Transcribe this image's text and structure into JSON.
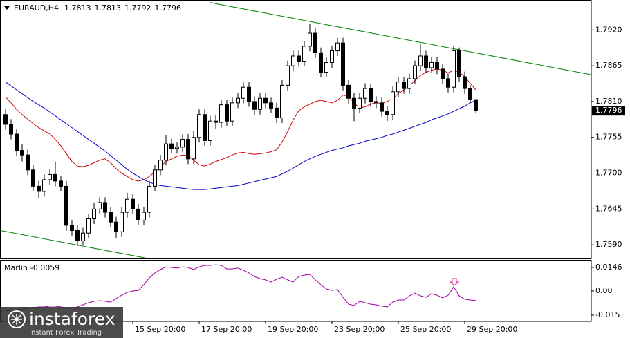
{
  "chart_data": [
    {
      "type": "candlestick",
      "title": "EURAUD,H4",
      "categories": [
        null,
        null,
        null,
        null,
        null,
        null,
        null,
        null,
        null,
        null,
        null,
        null,
        null,
        null,
        null,
        null,
        null,
        null,
        null,
        null,
        null,
        null,
        null,
        "15 Sep 20:00",
        null,
        null,
        null,
        null,
        null,
        null,
        null,
        null,
        null,
        null,
        null,
        "17 Sep 20:00",
        null,
        null,
        null,
        null,
        null,
        null,
        null,
        null,
        null,
        null,
        null,
        "19 Sep 20:00",
        null,
        null,
        null,
        null,
        null,
        null,
        null,
        null,
        null,
        null,
        null,
        "23 Sep 20:00",
        null,
        null,
        null,
        null,
        null,
        null,
        null,
        null,
        null,
        null,
        null,
        "25 Sep 20:00",
        null,
        null,
        null,
        null,
        null,
        null,
        null,
        null,
        null,
        null,
        null,
        "29 Sep 20:00",
        null,
        null
      ],
      "open": [
        1.779,
        1.7775,
        1.776,
        1.7735,
        1.7728,
        1.7705,
        1.768,
        1.7672,
        1.769,
        1.7698,
        1.7688,
        1.768,
        1.762,
        1.7612,
        1.7596,
        1.7608,
        1.763,
        1.7645,
        1.7655,
        1.764,
        1.7625,
        1.761,
        1.764,
        1.766,
        1.7645,
        1.7628,
        1.764,
        1.768,
        1.7705,
        1.772,
        1.7745,
        1.7738,
        1.774,
        1.7752,
        1.7722,
        1.7755,
        1.779,
        1.775,
        1.778,
        1.7778,
        1.7805,
        1.778,
        1.7808,
        1.7815,
        1.7832,
        1.781,
        1.7798,
        1.7815,
        1.7808,
        1.78,
        1.7785,
        1.7835,
        1.7865,
        1.788,
        1.7872,
        1.7895,
        1.7915,
        1.7885,
        1.7855,
        1.787,
        1.7888,
        1.79,
        1.7835,
        1.7815,
        1.78,
        1.7815,
        1.783,
        1.781,
        1.7808,
        1.7795,
        1.779,
        1.7825,
        1.784,
        1.783,
        1.7845,
        1.7865,
        1.788,
        1.7862,
        1.787,
        1.786,
        1.7845,
        1.7832,
        1.7888,
        1.7848,
        1.783,
        1.7813
      ],
      "high": [
        1.7798,
        1.7783,
        1.7768,
        1.7745,
        1.7736,
        1.7712,
        1.7688,
        1.7698,
        1.7706,
        1.7718,
        1.7696,
        1.7688,
        1.7628,
        1.762,
        1.7616,
        1.7638,
        1.7655,
        1.7663,
        1.7663,
        1.7648,
        1.7633,
        1.7648,
        1.767,
        1.7668,
        1.7653,
        1.7648,
        1.7688,
        1.7713,
        1.7728,
        1.7758,
        1.7753,
        1.7748,
        1.776,
        1.776,
        1.7765,
        1.7798,
        1.7798,
        1.7788,
        1.779,
        1.7813,
        1.7813,
        1.7816,
        1.7823,
        1.784,
        1.784,
        1.7818,
        1.7823,
        1.7823,
        1.7816,
        1.7808,
        1.7843,
        1.7873,
        1.7888,
        1.7888,
        1.7903,
        1.793,
        1.7923,
        1.7893,
        1.7878,
        1.7896,
        1.7908,
        1.7908,
        1.7843,
        1.7823,
        1.7823,
        1.7838,
        1.7838,
        1.7818,
        1.7816,
        1.7803,
        1.7833,
        1.7848,
        1.7848,
        1.7853,
        1.7873,
        1.7898,
        1.7888,
        1.7878,
        1.7878,
        1.7868,
        1.7853,
        1.7896,
        1.7893,
        1.7856,
        1.7835,
        1.7813
      ],
      "low": [
        1.7767,
        1.7752,
        1.7727,
        1.7718,
        1.7697,
        1.7672,
        1.7662,
        1.7664,
        1.7682,
        1.768,
        1.7672,
        1.7612,
        1.7603,
        1.7588,
        1.759,
        1.76,
        1.7622,
        1.7637,
        1.7632,
        1.7617,
        1.76,
        1.7602,
        1.7632,
        1.7637,
        1.762,
        1.762,
        1.7632,
        1.7672,
        1.7697,
        1.7712,
        1.773,
        1.773,
        1.7732,
        1.7714,
        1.7714,
        1.7747,
        1.7742,
        1.7742,
        1.7768,
        1.777,
        1.7772,
        1.7772,
        1.78,
        1.7807,
        1.7802,
        1.779,
        1.779,
        1.78,
        1.7792,
        1.7777,
        1.7777,
        1.7827,
        1.7857,
        1.7864,
        1.7864,
        1.7887,
        1.7877,
        1.7847,
        1.7847,
        1.7862,
        1.788,
        1.7827,
        1.7807,
        1.778,
        1.7792,
        1.7807,
        1.7802,
        1.78,
        1.7787,
        1.778,
        1.7782,
        1.7817,
        1.7822,
        1.7822,
        1.7837,
        1.7857,
        1.7854,
        1.7854,
        1.7852,
        1.7837,
        1.7824,
        1.7824,
        1.784,
        1.7822,
        1.7808,
        1.7792
      ],
      "close": [
        1.7775,
        1.776,
        1.7735,
        1.7728,
        1.7705,
        1.768,
        1.7672,
        1.769,
        1.7698,
        1.7688,
        1.768,
        1.762,
        1.7612,
        1.7596,
        1.7608,
        1.763,
        1.7645,
        1.7655,
        1.764,
        1.7625,
        1.761,
        1.764,
        1.766,
        1.7645,
        1.7628,
        1.764,
        1.768,
        1.7705,
        1.772,
        1.7745,
        1.7738,
        1.774,
        1.7752,
        1.7722,
        1.7755,
        1.779,
        1.775,
        1.778,
        1.7778,
        1.7805,
        1.778,
        1.7808,
        1.7815,
        1.7832,
        1.781,
        1.7798,
        1.7815,
        1.7808,
        1.78,
        1.7785,
        1.7835,
        1.7865,
        1.788,
        1.7872,
        1.7895,
        1.7915,
        1.7885,
        1.7855,
        1.787,
        1.7888,
        1.79,
        1.7835,
        1.7815,
        1.78,
        1.7815,
        1.783,
        1.781,
        1.7808,
        1.7795,
        1.779,
        1.7825,
        1.784,
        1.783,
        1.7845,
        1.7865,
        1.788,
        1.7862,
        1.787,
        1.786,
        1.7845,
        1.7832,
        1.7888,
        1.7848,
        1.783,
        1.7813,
        1.7796
      ],
      "up_color": "#ffffff",
      "down_color": "#000000",
      "series": [
        {
          "color": "#cc0000",
          "values": [
            1.7817,
            1.7808,
            1.7798,
            1.779,
            1.7783,
            1.7776,
            1.777,
            1.7765,
            1.776,
            1.7752,
            1.7742,
            1.773,
            1.7718,
            1.7711,
            1.771,
            1.7712,
            1.7716,
            1.772,
            1.7722,
            1.7716,
            1.7707,
            1.77,
            1.7695,
            1.769,
            1.7688,
            1.769,
            1.7695,
            1.7702,
            1.771,
            1.7718,
            1.7722,
            1.7726,
            1.7728,
            1.7727,
            1.772,
            1.7713,
            1.7711,
            1.7714,
            1.7718,
            1.7721,
            1.7724,
            1.7728,
            1.7731,
            1.7732,
            1.773,
            1.7729,
            1.773,
            1.7731,
            1.7733,
            1.7736,
            1.7748,
            1.7764,
            1.7782,
            1.7796,
            1.7802,
            1.7806,
            1.781,
            1.7812,
            1.781,
            1.7808,
            1.7812,
            1.782,
            1.7818,
            1.7808,
            1.78,
            1.7802,
            1.7806,
            1.7808,
            1.7807,
            1.781,
            1.7815,
            1.7822,
            1.7828,
            1.7834,
            1.7842,
            1.785,
            1.7855,
            1.7858,
            1.786,
            1.7858,
            1.7854,
            1.7858,
            1.7855,
            1.7848,
            1.7838,
            1.7828
          ]
        },
        {
          "color": "#0000c8",
          "values": [
            1.784,
            1.7834,
            1.7828,
            1.7822,
            1.7816,
            1.781,
            1.7805,
            1.78,
            1.7794,
            1.7788,
            1.7782,
            1.7776,
            1.777,
            1.7764,
            1.7758,
            1.7752,
            1.7746,
            1.774,
            1.7734,
            1.7727,
            1.772,
            1.7713,
            1.7706,
            1.77,
            1.7695,
            1.769,
            1.7686,
            1.7683,
            1.7681,
            1.768,
            1.7679,
            1.7678,
            1.7677,
            1.7676,
            1.7675,
            1.7675,
            1.7675,
            1.7676,
            1.7677,
            1.7678,
            1.7679,
            1.768,
            1.7681,
            1.7683,
            1.7685,
            1.7687,
            1.7689,
            1.7691,
            1.7693,
            1.7695,
            1.7699,
            1.7703,
            1.7708,
            1.7713,
            1.7718,
            1.7722,
            1.7726,
            1.7729,
            1.7732,
            1.7735,
            1.7737,
            1.7739,
            1.7742,
            1.7744,
            1.7746,
            1.7749,
            1.7751,
            1.7753,
            1.7755,
            1.7758,
            1.776,
            1.7763,
            1.7766,
            1.7769,
            1.7772,
            1.7775,
            1.7778,
            1.7782,
            1.7785,
            1.7788,
            1.7791,
            1.7795,
            1.7799,
            1.7803,
            1.7808,
            1.7812
          ]
        }
      ],
      "trendlines": [
        {
          "color": "#008000",
          "x": [
            37,
            106
          ],
          "values": [
            1.7962,
            1.7851
          ]
        },
        {
          "color": "#008000",
          "x": [
            -1,
            27
          ],
          "values": [
            1.7612,
            1.7567
          ]
        }
      ],
      "ylim": [
        1.757,
        1.7966
      ],
      "yticks": [
        {
          "value": 1.792,
          "label": "1.7920"
        },
        {
          "value": 1.7865,
          "label": "1.7865"
        },
        {
          "value": 1.781,
          "label": "1.7810"
        },
        {
          "value": 1.7755,
          "label": "1.7755"
        },
        {
          "value": 1.77,
          "label": "1.7700"
        },
        {
          "value": 1.7645,
          "label": "1.7645"
        },
        {
          "value": 1.759,
          "label": "1.7590"
        }
      ]
    },
    {
      "type": "line",
      "title": "Marlin",
      "series": [
        {
          "color": "#a000a0",
          "values": [
            -0.0124,
            -0.012,
            -0.0116,
            -0.0112,
            -0.0107,
            -0.0103,
            -0.0099,
            -0.0099,
            -0.0094,
            -0.0094,
            -0.0099,
            -0.0103,
            -0.0107,
            -0.0099,
            -0.0086,
            -0.0073,
            -0.0064,
            -0.006,
            -0.0064,
            -0.0069,
            -0.0047,
            -0.0026,
            -0.0009,
            0.0,
            0.0004,
            0.0039,
            0.0082,
            0.0112,
            0.0133,
            0.015,
            0.0146,
            0.0142,
            0.015,
            0.0146,
            0.0133,
            0.015,
            0.0159,
            0.0159,
            0.0163,
            0.0159,
            0.0137,
            0.0137,
            0.0142,
            0.0129,
            0.0112,
            0.009,
            0.0077,
            0.0069,
            0.0056,
            0.0073,
            0.0086,
            0.0069,
            0.0056,
            0.009,
            0.0099,
            0.0103,
            0.0069,
            0.0039,
            0.0013,
            0.0004,
            0.0009,
            -0.0039,
            -0.0082,
            -0.009,
            -0.0064,
            -0.0073,
            -0.0082,
            -0.0086,
            -0.0094,
            -0.0099,
            -0.0069,
            -0.0056,
            -0.0056,
            -0.003,
            -0.0013,
            -0.003,
            -0.0039,
            -0.0017,
            -0.0026,
            -0.0043,
            -0.0026,
            0.0026,
            -0.003,
            -0.0051,
            -0.0056,
            -0.0059
          ]
        }
      ],
      "ylim": [
        -0.0189,
        0.0189
      ],
      "yticks": [
        0.0146,
        {
          "value": 0,
          "label": "0.00"
        },
        -0.015
      ]
    }
  ],
  "watermark": {
    "brand": "instaforex",
    "tagline": "Instant Forex Trading"
  }
}
